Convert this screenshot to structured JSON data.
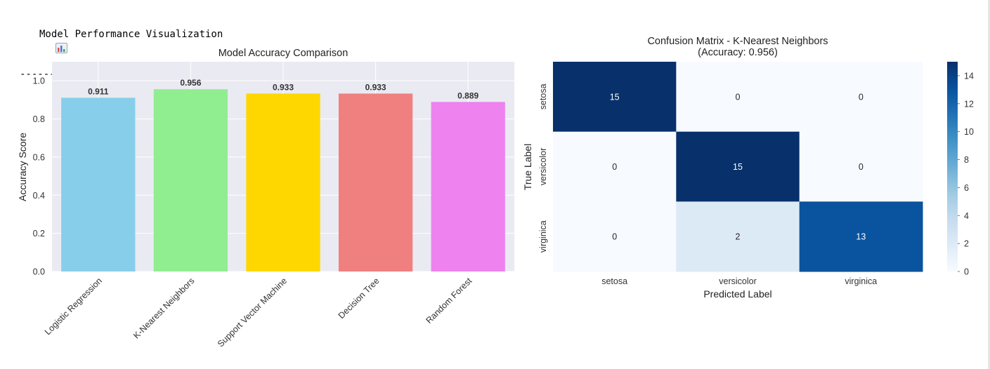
{
  "output_header": {
    "title": "Model Performance Visualization",
    "underline": "----------------------------------",
    "icon": "bar-chart-icon"
  },
  "chart_data": [
    {
      "type": "bar",
      "title": "Model Accuracy Comparison",
      "xlabel": "",
      "ylabel": "Accuracy Score",
      "categories": [
        "Logistic Regression",
        "K-Nearest Neighbors",
        "Support Vector Machine",
        "Decision Tree",
        "Random Forest"
      ],
      "values": [
        0.911,
        0.956,
        0.933,
        0.933,
        0.889
      ],
      "value_labels": [
        "0.911",
        "0.956",
        "0.933",
        "0.933",
        "0.889"
      ],
      "colors": [
        "#87ceeb",
        "#90ee90",
        "#ffd700",
        "#f08080",
        "#ee82ee"
      ],
      "ylim": [
        0,
        1.1
      ],
      "yticks": [
        "0.0",
        "0.2",
        "0.4",
        "0.6",
        "0.8",
        "1.0"
      ],
      "ytick_values": [
        0,
        0.2,
        0.4,
        0.6,
        0.8,
        1.0
      ],
      "grid": true,
      "background": "#eaeaf2"
    },
    {
      "type": "heatmap",
      "title": "Confusion Matrix - K-Nearest Neighbors",
      "subtitle": "(Accuracy: 0.956)",
      "xlabel": "Predicted Label",
      "ylabel": "True Label",
      "x_categories": [
        "setosa",
        "versicolor",
        "virginica"
      ],
      "y_categories": [
        "setosa",
        "versicolor",
        "virginica"
      ],
      "matrix": [
        [
          15,
          0,
          0
        ],
        [
          0,
          15,
          0
        ],
        [
          0,
          2,
          13
        ]
      ],
      "colormap": "Blues",
      "colorbar_range": [
        0,
        15
      ],
      "colorbar_ticks": [
        "0",
        "2",
        "4",
        "6",
        "8",
        "10",
        "12",
        "14"
      ],
      "colorbar_tick_values": [
        0,
        2,
        4,
        6,
        8,
        10,
        12,
        14
      ]
    }
  ]
}
